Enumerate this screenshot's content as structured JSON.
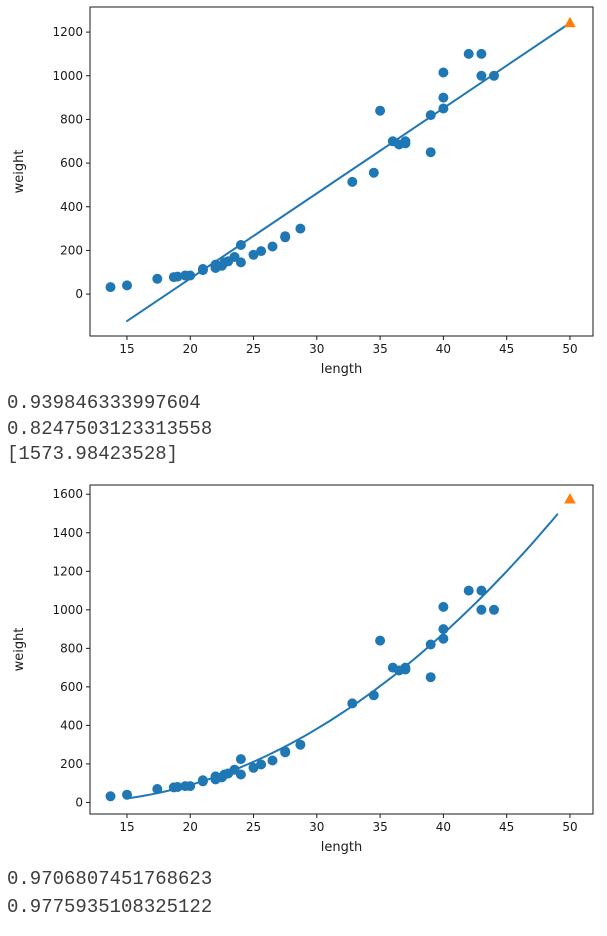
{
  "page": {
    "background": "#ffffff"
  },
  "stdout": {
    "block1": [
      "0.939846333997604",
      "0.8247503123313558",
      "[1573.98423528]"
    ],
    "block2": [
      "0.9706807451768623",
      "0.9775935108325122"
    ]
  },
  "colors": {
    "points": "#1f77b4",
    "fit_line": "#1f77b4",
    "prediction_marker": "#ff7f0e",
    "axis": "#1a1a1a"
  },
  "chart_data": [
    {
      "type": "scatter",
      "title": "",
      "xlabel": "length",
      "ylabel": "weight",
      "xlim": [
        12.08,
        51.82
      ],
      "ylim": [
        -192,
        1315
      ],
      "xticks": [
        15,
        20,
        25,
        30,
        35,
        40,
        45,
        50
      ],
      "yticks": [
        0,
        200,
        400,
        600,
        800,
        1000,
        1200
      ],
      "grid": false,
      "legend": "none",
      "series": [
        {
          "name": "train-data",
          "kind": "scatter",
          "marker": "circle",
          "color": "#1f77b4",
          "x": [
            19.6,
            22,
            18.7,
            17.4,
            36,
            25,
            40,
            39,
            43,
            22,
            20,
            22,
            24,
            27.5,
            43,
            40,
            24,
            21,
            27.5,
            40,
            32.8,
            26.5,
            36.5,
            13.7,
            22.7,
            15,
            37,
            35,
            28.7,
            23.5,
            39,
            21,
            23,
            22,
            44,
            22.5,
            19,
            37,
            22,
            25.6,
            42,
            34.5
          ],
          "y": [
            85,
            135,
            78,
            70,
            700,
            180,
            850,
            820,
            1000,
            120,
            85,
            130,
            225,
            260,
            1100,
            900,
            145,
            115,
            265,
            1015,
            514,
            218,
            685,
            32,
            145,
            40,
            690,
            840,
            300,
            170,
            650,
            110,
            150,
            130,
            1000,
            130,
            80,
            700,
            120,
            197,
            1100,
            556
          ]
        },
        {
          "name": "linear-fit-line",
          "kind": "line",
          "color": "#1f77b4",
          "x": [
            15,
            50
          ],
          "y": [
            -123.76,
            1241.84
          ]
        },
        {
          "name": "prediction-50cm",
          "kind": "scatter",
          "marker": "triangle",
          "color": "#ff7f0e",
          "x": [
            50
          ],
          "y": [
            1241.84
          ]
        }
      ]
    },
    {
      "type": "scatter",
      "title": "",
      "xlabel": "length",
      "ylabel": "weight",
      "xlim": [
        12.08,
        51.82
      ],
      "ylim": [
        -60,
        1648
      ],
      "xticks": [
        15,
        20,
        25,
        30,
        35,
        40,
        45,
        50
      ],
      "yticks": [
        0,
        200,
        400,
        600,
        800,
        1000,
        1200,
        1400,
        1600
      ],
      "grid": false,
      "legend": "none",
      "series": [
        {
          "name": "train-data",
          "kind": "scatter",
          "marker": "circle",
          "color": "#1f77b4",
          "x": [
            19.6,
            22,
            18.7,
            17.4,
            36,
            25,
            40,
            39,
            43,
            22,
            20,
            22,
            24,
            27.5,
            43,
            40,
            24,
            21,
            27.5,
            40,
            32.8,
            26.5,
            36.5,
            13.7,
            22.7,
            15,
            37,
            35,
            28.7,
            23.5,
            39,
            21,
            23,
            22,
            44,
            22.5,
            19,
            37,
            22,
            25.6,
            42,
            34.5
          ],
          "y": [
            85,
            135,
            78,
            70,
            700,
            180,
            850,
            820,
            1000,
            120,
            85,
            130,
            225,
            260,
            1100,
            900,
            145,
            115,
            265,
            1015,
            514,
            218,
            685,
            32,
            145,
            40,
            690,
            840,
            300,
            170,
            650,
            110,
            150,
            130,
            1000,
            130,
            80,
            700,
            120,
            197,
            1100,
            556
          ]
        },
        {
          "name": "quadratic-fit-curve",
          "kind": "poly-curve",
          "color": "#1f77b4",
          "coefficients": [
            1.01433211,
            -21.55792498,
            116.05021078
          ],
          "x_range": [
            15,
            49
          ]
        },
        {
          "name": "prediction-50cm",
          "kind": "scatter",
          "marker": "triangle",
          "color": "#ff7f0e",
          "x": [
            50
          ],
          "y": [
            1573.98423528
          ]
        }
      ]
    }
  ]
}
